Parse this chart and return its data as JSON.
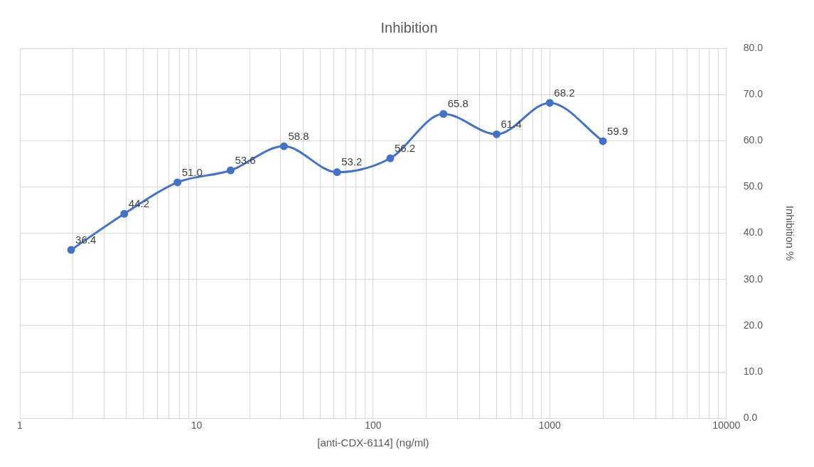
{
  "chart_data": {
    "type": "line",
    "title": "Inhibition",
    "xlabel": "[anti-CDX-6114] (ng/ml)",
    "ylabel": "Inhibition %",
    "x": [
      1.95,
      3.9,
      7.8,
      15.6,
      31.25,
      62.5,
      125,
      250,
      500,
      1000,
      2000
    ],
    "series": [
      {
        "color": "#4472c4",
        "values": [
          36.4,
          44.2,
          51.0,
          53.6,
          58.8,
          53.2,
          56.2,
          65.8,
          61.4,
          68.2,
          59.9
        ],
        "value_labels": [
          "36.4",
          "44.2",
          "51.0",
          "53.6",
          "58.8",
          "53.2",
          "56.2",
          "65.8",
          "61.4",
          "68.2",
          "59.9"
        ]
      }
    ],
    "log": "x",
    "xlim": [
      1,
      10000
    ],
    "xticks": [
      1,
      {
        "value": 2,
        "label": null
      },
      {
        "value": 3,
        "label": null
      },
      {
        "value": 4,
        "label": null
      },
      {
        "value": 5,
        "label": null
      },
      {
        "value": 6,
        "label": null
      },
      {
        "value": 7,
        "label": null
      },
      {
        "value": 8,
        "label": null
      },
      {
        "value": 9,
        "label": null
      },
      10,
      {
        "value": 20,
        "label": null
      },
      {
        "value": 30,
        "label": null
      },
      {
        "value": 40,
        "label": null
      },
      {
        "value": 50,
        "label": null
      },
      {
        "value": 60,
        "label": null
      },
      {
        "value": 70,
        "label": null
      },
      {
        "value": 80,
        "label": null
      },
      {
        "value": 90,
        "label": null
      },
      100,
      {
        "value": 200,
        "label": null
      },
      {
        "value": 300,
        "label": null
      },
      {
        "value": 400,
        "label": null
      },
      {
        "value": 500,
        "label": null
      },
      {
        "value": 600,
        "label": null
      },
      {
        "value": 700,
        "label": null
      },
      {
        "value": 800,
        "label": null
      },
      {
        "value": 900,
        "label": null
      },
      1000,
      {
        "value": 2000,
        "label": null
      },
      {
        "value": 3000,
        "label": null
      },
      {
        "value": 4000,
        "label": null
      },
      {
        "value": 5000,
        "label": null
      },
      {
        "value": 6000,
        "label": null
      },
      {
        "value": 7000,
        "label": null
      },
      {
        "value": 8000,
        "label": null
      },
      {
        "value": 9000,
        "label": null
      },
      10000
    ],
    "ylim": [
      0,
      80
    ],
    "yticks": [
      {
        "value": 0,
        "label": "0.0"
      },
      {
        "value": 10,
        "label": "10.0"
      },
      {
        "value": 20,
        "label": "20.0"
      },
      {
        "value": 30,
        "label": "30.0"
      },
      {
        "value": 40,
        "label": "40.0"
      },
      {
        "value": 50,
        "label": "50.0"
      },
      {
        "value": 60,
        "label": "60.0"
      },
      {
        "value": 70,
        "label": "70.0"
      },
      {
        "value": 80,
        "label": "80.0"
      }
    ],
    "grid": true,
    "legend": false,
    "marker": "circle",
    "line_style": "solid"
  }
}
